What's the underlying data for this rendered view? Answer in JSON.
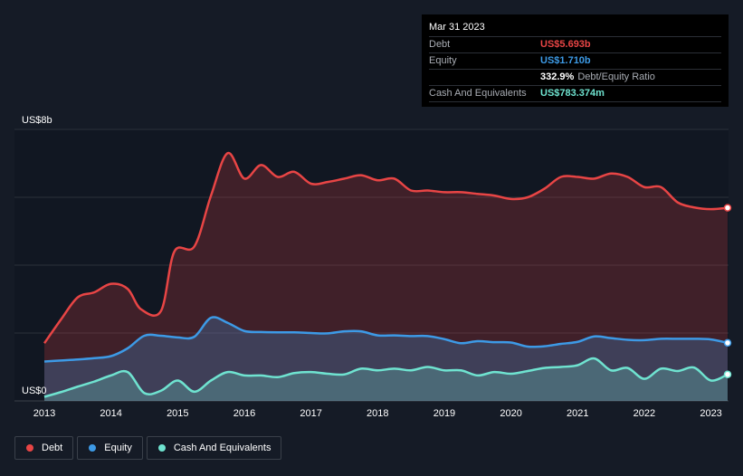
{
  "tooltip": {
    "date": "Mar 31 2023",
    "rows": [
      {
        "label": "Debt",
        "value": "US$5.693b",
        "color": "#e84545"
      },
      {
        "label": "Equity",
        "value": "US$1.710b",
        "color": "#3d9ae6"
      },
      {
        "label": "",
        "value": "332.9%",
        "extra": "Debt/Equity Ratio",
        "color": "#ffffff"
      },
      {
        "label": "Cash And Equivalents",
        "value": "US$783.374m",
        "color": "#6fe3d0"
      }
    ]
  },
  "legend": [
    {
      "label": "Debt",
      "color": "#e84545"
    },
    {
      "label": "Equity",
      "color": "#3d9ae6"
    },
    {
      "label": "Cash And Equivalents",
      "color": "#6fe3d0"
    }
  ],
  "chart_data": {
    "type": "area",
    "ylabel_top": "US$8b",
    "ylabel_bottom": "US$0",
    "ylim": [
      0,
      8
    ],
    "xlim": [
      2013.0,
      2023.25
    ],
    "x_ticks": [
      "2013",
      "2014",
      "2015",
      "2016",
      "2017",
      "2018",
      "2019",
      "2020",
      "2021",
      "2022",
      "2023"
    ],
    "grid": true,
    "series": [
      {
        "name": "Debt",
        "color": "#e84545",
        "points": [
          [
            2013.0,
            1.7
          ],
          [
            2013.25,
            2.4
          ],
          [
            2013.5,
            3.05
          ],
          [
            2013.75,
            3.2
          ],
          [
            2014.0,
            3.45
          ],
          [
            2014.25,
            3.3
          ],
          [
            2014.45,
            2.7
          ],
          [
            2014.75,
            2.65
          ],
          [
            2014.95,
            4.4
          ],
          [
            2015.25,
            4.55
          ],
          [
            2015.5,
            6.05
          ],
          [
            2015.75,
            7.3
          ],
          [
            2016.0,
            6.55
          ],
          [
            2016.25,
            6.95
          ],
          [
            2016.5,
            6.6
          ],
          [
            2016.75,
            6.75
          ],
          [
            2017.0,
            6.4
          ],
          [
            2017.25,
            6.45
          ],
          [
            2017.5,
            6.55
          ],
          [
            2017.75,
            6.65
          ],
          [
            2018.0,
            6.5
          ],
          [
            2018.25,
            6.55
          ],
          [
            2018.5,
            6.2
          ],
          [
            2018.75,
            6.2
          ],
          [
            2019.0,
            6.15
          ],
          [
            2019.25,
            6.15
          ],
          [
            2019.5,
            6.1
          ],
          [
            2019.75,
            6.05
          ],
          [
            2020.0,
            5.95
          ],
          [
            2020.25,
            6.0
          ],
          [
            2020.5,
            6.25
          ],
          [
            2020.75,
            6.6
          ],
          [
            2021.0,
            6.6
          ],
          [
            2021.25,
            6.55
          ],
          [
            2021.5,
            6.7
          ],
          [
            2021.75,
            6.6
          ],
          [
            2022.0,
            6.3
          ],
          [
            2022.25,
            6.3
          ],
          [
            2022.5,
            5.85
          ],
          [
            2022.75,
            5.7
          ],
          [
            2023.0,
            5.65
          ],
          [
            2023.25,
            5.69
          ]
        ]
      },
      {
        "name": "Equity",
        "color": "#3d9ae6",
        "points": [
          [
            2013.0,
            1.16
          ],
          [
            2013.25,
            1.19
          ],
          [
            2013.5,
            1.22
          ],
          [
            2013.75,
            1.26
          ],
          [
            2014.0,
            1.32
          ],
          [
            2014.25,
            1.55
          ],
          [
            2014.5,
            1.92
          ],
          [
            2014.75,
            1.92
          ],
          [
            2015.0,
            1.87
          ],
          [
            2015.25,
            1.89
          ],
          [
            2015.5,
            2.45
          ],
          [
            2015.75,
            2.3
          ],
          [
            2016.0,
            2.06
          ],
          [
            2016.25,
            2.03
          ],
          [
            2016.5,
            2.02
          ],
          [
            2016.75,
            2.02
          ],
          [
            2017.0,
            2.0
          ],
          [
            2017.25,
            1.99
          ],
          [
            2017.5,
            2.05
          ],
          [
            2017.75,
            2.05
          ],
          [
            2018.0,
            1.93
          ],
          [
            2018.25,
            1.93
          ],
          [
            2018.5,
            1.91
          ],
          [
            2018.75,
            1.91
          ],
          [
            2019.0,
            1.82
          ],
          [
            2019.25,
            1.7
          ],
          [
            2019.5,
            1.76
          ],
          [
            2019.75,
            1.73
          ],
          [
            2020.0,
            1.72
          ],
          [
            2020.25,
            1.6
          ],
          [
            2020.5,
            1.61
          ],
          [
            2020.75,
            1.68
          ],
          [
            2021.0,
            1.74
          ],
          [
            2021.25,
            1.9
          ],
          [
            2021.5,
            1.85
          ],
          [
            2021.75,
            1.8
          ],
          [
            2022.0,
            1.79
          ],
          [
            2022.25,
            1.83
          ],
          [
            2022.5,
            1.83
          ],
          [
            2022.75,
            1.83
          ],
          [
            2023.0,
            1.81
          ],
          [
            2023.25,
            1.71
          ]
        ]
      },
      {
        "name": "Cash And Equivalents",
        "color": "#6fe3d0",
        "points": [
          [
            2013.0,
            0.12
          ],
          [
            2013.25,
            0.26
          ],
          [
            2013.5,
            0.42
          ],
          [
            2013.75,
            0.57
          ],
          [
            2014.0,
            0.75
          ],
          [
            2014.25,
            0.85
          ],
          [
            2014.5,
            0.23
          ],
          [
            2014.75,
            0.3
          ],
          [
            2015.0,
            0.6
          ],
          [
            2015.25,
            0.27
          ],
          [
            2015.5,
            0.6
          ],
          [
            2015.75,
            0.85
          ],
          [
            2016.0,
            0.75
          ],
          [
            2016.25,
            0.75
          ],
          [
            2016.5,
            0.7
          ],
          [
            2016.75,
            0.82
          ],
          [
            2017.0,
            0.85
          ],
          [
            2017.25,
            0.8
          ],
          [
            2017.5,
            0.78
          ],
          [
            2017.75,
            0.95
          ],
          [
            2018.0,
            0.9
          ],
          [
            2018.25,
            0.95
          ],
          [
            2018.5,
            0.9
          ],
          [
            2018.75,
            1.0
          ],
          [
            2019.0,
            0.9
          ],
          [
            2019.25,
            0.9
          ],
          [
            2019.5,
            0.75
          ],
          [
            2019.75,
            0.85
          ],
          [
            2020.0,
            0.8
          ],
          [
            2020.25,
            0.88
          ],
          [
            2020.5,
            0.97
          ],
          [
            2020.75,
            1.0
          ],
          [
            2021.0,
            1.05
          ],
          [
            2021.25,
            1.25
          ],
          [
            2021.5,
            0.9
          ],
          [
            2021.75,
            0.97
          ],
          [
            2022.0,
            0.65
          ],
          [
            2022.25,
            0.95
          ],
          [
            2022.5,
            0.88
          ],
          [
            2022.75,
            0.98
          ],
          [
            2023.0,
            0.6
          ],
          [
            2023.25,
            0.78
          ]
        ]
      }
    ]
  }
}
